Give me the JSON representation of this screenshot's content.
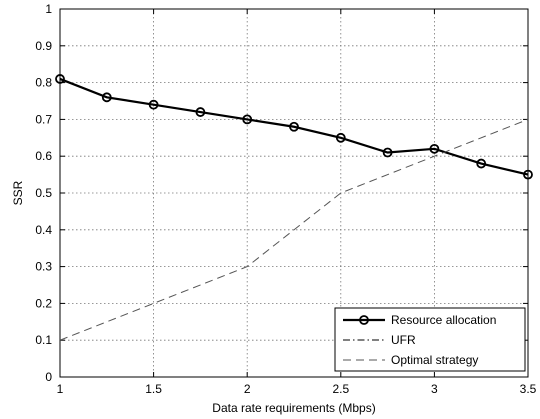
{
  "chart_data": {
    "type": "line",
    "xlabel": "Data rate requirements (Mbps)",
    "ylabel": "SSR",
    "xlim": [
      1,
      3.5
    ],
    "ylim": [
      0,
      1
    ],
    "x_ticks": [
      "1",
      "1.5",
      "2",
      "2.5",
      "3",
      "3.5"
    ],
    "y_ticks": [
      "0",
      "0.1",
      "0.2",
      "0.3",
      "0.4",
      "0.5",
      "0.6",
      "0.7",
      "0.8",
      "0.9",
      "1"
    ],
    "grid": true,
    "legend_position": "bottom-right",
    "series": [
      {
        "name": "Resource allocation",
        "style": "solid-circle-markers",
        "color": "#000000",
        "x": [
          1,
          1.25,
          1.5,
          1.75,
          2,
          2.25,
          2.5,
          2.75,
          3,
          3.25,
          3.5
        ],
        "y": [
          0.81,
          0.76,
          0.74,
          0.72,
          0.7,
          0.68,
          0.65,
          0.61,
          0.62,
          0.58,
          0.55
        ]
      },
      {
        "name": "UFR",
        "style": "dashdot",
        "color": "#000000",
        "x": [
          1,
          3.5
        ],
        "y": [
          1.0,
          1.0
        ]
      },
      {
        "name": "Optimal strategy",
        "style": "dashed",
        "color": "#555555",
        "x": [
          1,
          1.5,
          2,
          2.5,
          3,
          3.5
        ],
        "y": [
          0.1,
          0.2,
          0.3,
          0.5,
          0.6,
          0.7
        ]
      }
    ]
  }
}
